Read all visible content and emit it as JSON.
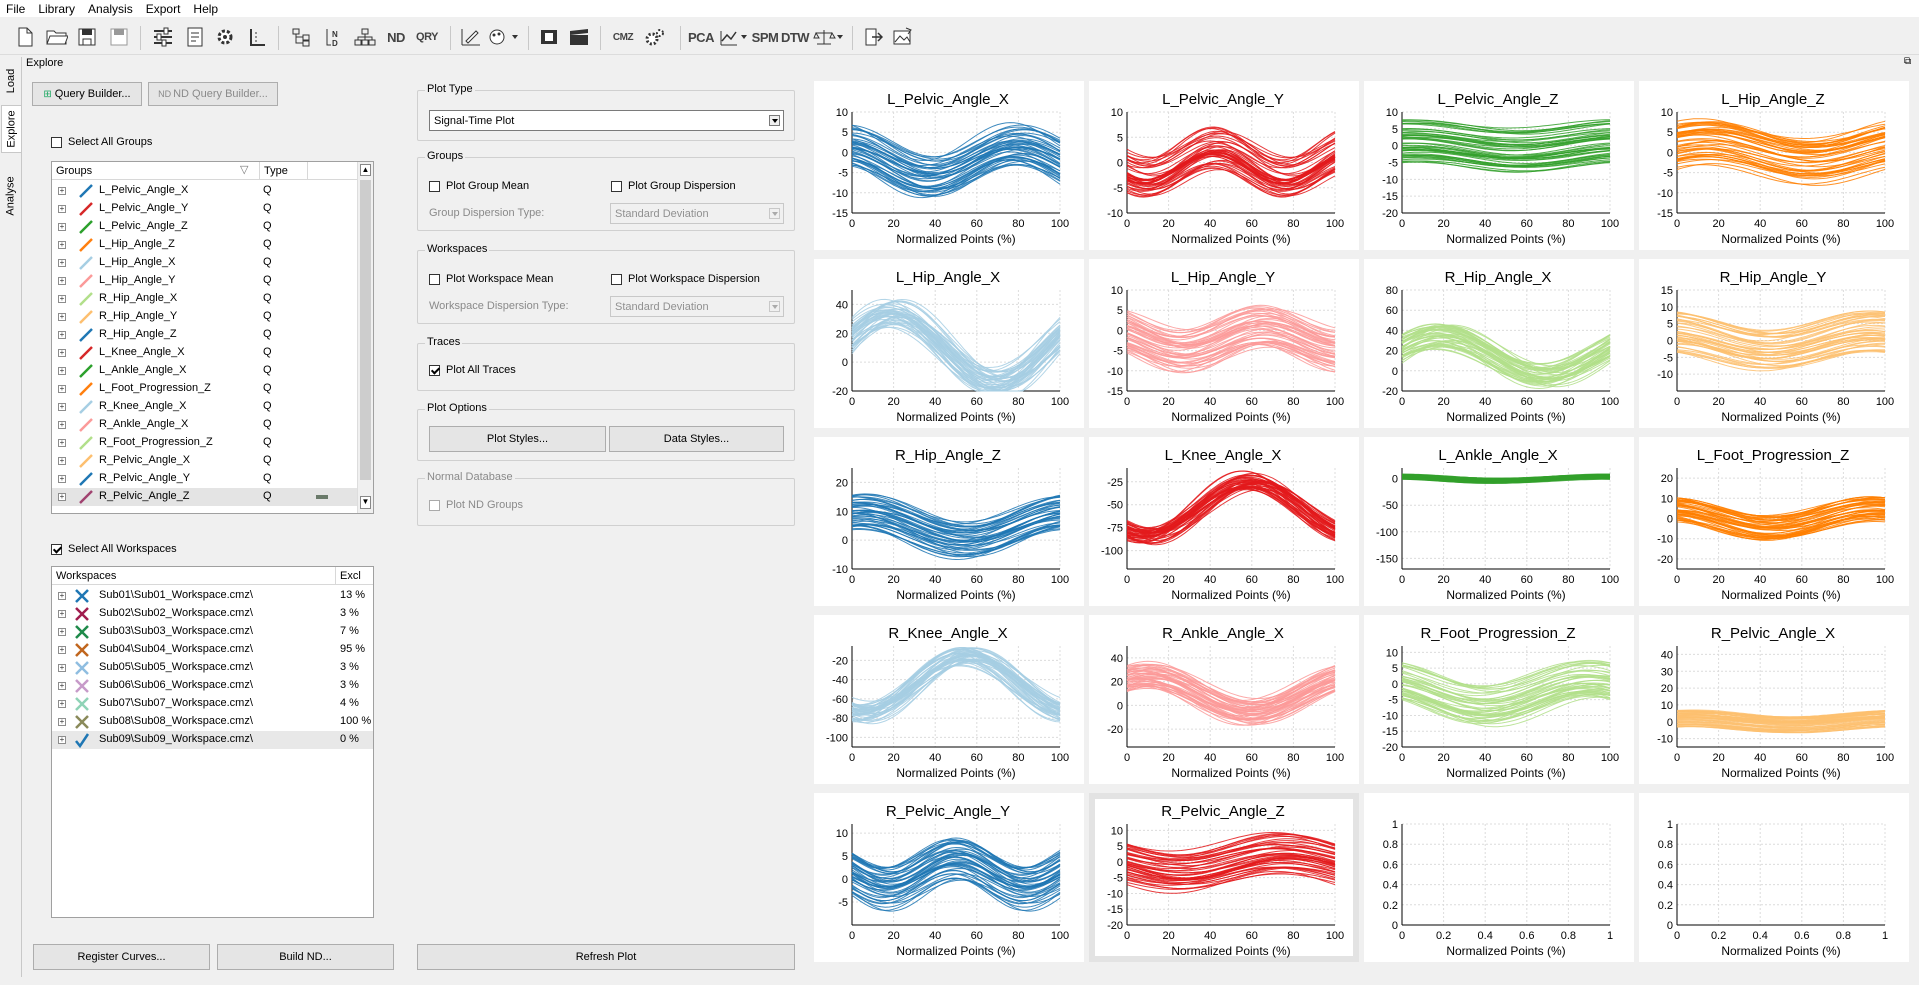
{
  "menu": [
    "File",
    "Library",
    "Analysis",
    "Export",
    "Help"
  ],
  "toolbar_text": {
    "pca": "PCA",
    "spm": "SPM",
    "dtw": "DTW",
    "nd": "ND",
    "qry": "QRY",
    "cmz": "CMZ"
  },
  "vtabs": [
    "Load",
    "Explore",
    "Analyse"
  ],
  "page_title": "Explore",
  "query_builder": "Query Builder...",
  "nd_query_builder": "ND Query Builder...",
  "select_all_groups": "Select All Groups",
  "groups_header": {
    "name": "Groups",
    "type": "Type"
  },
  "groups": [
    {
      "name": "L_Pelvic_Angle_X",
      "type": "Q",
      "color": "#1f77b4"
    },
    {
      "name": "L_Pelvic_Angle_Y",
      "type": "Q",
      "color": "#d62728"
    },
    {
      "name": "L_Pelvic_Angle_Z",
      "type": "Q",
      "color": "#2ca02c"
    },
    {
      "name": "L_Hip_Angle_Z",
      "type": "Q",
      "color": "#ff7f0e"
    },
    {
      "name": "L_Hip_Angle_X",
      "type": "Q",
      "color": "#a6cee3"
    },
    {
      "name": "L_Hip_Angle_Y",
      "type": "Q",
      "color": "#fb9a99"
    },
    {
      "name": "R_Hip_Angle_X",
      "type": "Q",
      "color": "#b2df8a"
    },
    {
      "name": "R_Hip_Angle_Y",
      "type": "Q",
      "color": "#fdbf6f"
    },
    {
      "name": "R_Hip_Angle_Z",
      "type": "Q",
      "color": "#1f77b4"
    },
    {
      "name": "L_Knee_Angle_X",
      "type": "Q",
      "color": "#d62728"
    },
    {
      "name": "L_Ankle_Angle_X",
      "type": "Q",
      "color": "#2ca02c"
    },
    {
      "name": "L_Foot_Progression_Z",
      "type": "Q",
      "color": "#ff7f0e"
    },
    {
      "name": "R_Knee_Angle_X",
      "type": "Q",
      "color": "#a6cee3"
    },
    {
      "name": "R_Ankle_Angle_X",
      "type": "Q",
      "color": "#fb9a99"
    },
    {
      "name": "R_Foot_Progression_Z",
      "type": "Q",
      "color": "#b2df8a"
    },
    {
      "name": "R_Pelvic_Angle_X",
      "type": "Q",
      "color": "#fdbf6f"
    },
    {
      "name": "R_Pelvic_Angle_Y",
      "type": "Q",
      "color": "#1f77b4"
    },
    {
      "name": "R_Pelvic_Angle_Z",
      "type": "Q",
      "color": "#a0426f"
    }
  ],
  "select_all_workspaces": "Select All Workspaces",
  "workspaces_header": {
    "name": "Workspaces",
    "excl": "Excl"
  },
  "workspaces": [
    {
      "name": "Sub01\\Sub01_Workspace.cmz\\",
      "excl": "13 %",
      "color": "#1f77b4",
      "mark": "x"
    },
    {
      "name": "Sub02\\Sub02_Workspace.cmz\\",
      "excl": "3 %",
      "color": "#a01d4e",
      "mark": "x"
    },
    {
      "name": "Sub03\\Sub03_Workspace.cmz\\",
      "excl": "7 %",
      "color": "#1f8a4a",
      "mark": "x"
    },
    {
      "name": "Sub04\\Sub04_Workspace.cmz\\",
      "excl": "95 %",
      "color": "#c0661e",
      "mark": "x"
    },
    {
      "name": "Sub05\\Sub05_Workspace.cmz\\",
      "excl": "3 %",
      "color": "#8fbde0",
      "mark": "x"
    },
    {
      "name": "Sub06\\Sub06_Workspace.cmz\\",
      "excl": "3 %",
      "color": "#c79ac9",
      "mark": "x"
    },
    {
      "name": "Sub07\\Sub07_Workspace.cmz\\",
      "excl": "4 %",
      "color": "#8fd3b6",
      "mark": "x"
    },
    {
      "name": "Sub08\\Sub08_Workspace.cmz\\",
      "excl": "100 %",
      "color": "#8a8a5a",
      "mark": "x"
    },
    {
      "name": "Sub09\\Sub09_Workspace.cmz\\",
      "excl": "0 %",
      "color": "#1f77b4",
      "mark": "check"
    }
  ],
  "register_curves": "Register Curves...",
  "build_nd": "Build ND...",
  "refresh_plot": "Refresh Plot",
  "plot_type": {
    "label": "Plot Type",
    "value": "Signal-Time Plot"
  },
  "groups_section": {
    "label": "Groups",
    "mean": "Plot Group Mean",
    "dispersion": "Plot Group Dispersion",
    "disp_type_label": "Group Dispersion Type:",
    "disp_type_value": "Standard Deviation"
  },
  "workspaces_section": {
    "label": "Workspaces",
    "mean": "Plot Workspace Mean",
    "dispersion": "Plot Workspace Dispersion",
    "disp_type_label": "Workspace Dispersion Type:",
    "disp_type_value": "Standard Deviation"
  },
  "traces_section": {
    "label": "Traces",
    "all": "Plot All Traces"
  },
  "plot_options": {
    "label": "Plot Options",
    "styles": "Plot Styles...",
    "data_styles": "Data Styles..."
  },
  "normal_db": {
    "label": "Normal Database",
    "nd_groups": "Plot ND Groups"
  },
  "chart_data": [
    {
      "type": "line",
      "title": "L_Pelvic_Angle_X",
      "xlabel": "Normalized Points (%)",
      "xlim": [
        0,
        100
      ],
      "ylim": [
        -15,
        10
      ],
      "yticks": [
        -15,
        -10,
        -5,
        0,
        5,
        10
      ],
      "color": "#1f77b4",
      "band": {
        "amp": 4,
        "period": 1.2,
        "phase": 0.3,
        "width": 10,
        "offset": -2
      }
    },
    {
      "type": "line",
      "title": "L_Pelvic_Angle_Y",
      "xlabel": "Normalized Points (%)",
      "xlim": [
        0,
        100
      ],
      "ylim": [
        -10,
        10
      ],
      "yticks": [
        -10,
        -5,
        0,
        5,
        10
      ],
      "color": "#e31a1c",
      "band": {
        "amp": 3,
        "period": 1.5,
        "phase": 0.6,
        "width": 8,
        "offset": 0
      }
    },
    {
      "type": "line",
      "title": "L_Pelvic_Angle_Z",
      "xlabel": "Normalized Points (%)",
      "xlim": [
        0,
        100
      ],
      "ylim": [
        -20,
        10
      ],
      "yticks": [
        -20,
        -15,
        -10,
        -5,
        0,
        5,
        10
      ],
      "color": "#33a02c",
      "band": {
        "amp": 1.5,
        "period": 1,
        "phase": 0.2,
        "width": 13,
        "offset": 0
      }
    },
    {
      "type": "line",
      "title": "L_Hip_Angle_Z",
      "xlabel": "Normalized Points (%)",
      "xlim": [
        0,
        100
      ],
      "ylim": [
        -15,
        10
      ],
      "yticks": [
        -15,
        -10,
        -5,
        0,
        5,
        10
      ],
      "color": "#ff7f00",
      "band": {
        "amp": 2.5,
        "period": 1,
        "phase": 0.1,
        "width": 11,
        "offset": 0
      }
    },
    {
      "type": "line",
      "title": "L_Hip_Angle_X",
      "xlabel": "Normalized Points (%)",
      "xlim": [
        0,
        100
      ],
      "ylim": [
        -20,
        50
      ],
      "yticks": [
        -20,
        0,
        20,
        40
      ],
      "color": "#a6cee3",
      "band": {
        "amp": 25,
        "period": 1,
        "phase": 0.05,
        "width": 15,
        "offset": 10
      }
    },
    {
      "type": "line",
      "title": "L_Hip_Angle_Y",
      "xlabel": "Normalized Points (%)",
      "xlim": [
        0,
        100
      ],
      "ylim": [
        -15,
        10
      ],
      "yticks": [
        -15,
        -10,
        -5,
        0,
        5,
        10
      ],
      "color": "#fb9a99",
      "band": {
        "amp": 3,
        "period": 1.3,
        "phase": 0.4,
        "width": 10,
        "offset": -2
      }
    },
    {
      "type": "line",
      "title": "R_Hip_Angle_X",
      "xlabel": "Normalized Points (%)",
      "xlim": [
        0,
        100
      ],
      "ylim": [
        -20,
        80
      ],
      "yticks": [
        -20,
        0,
        20,
        40,
        60,
        80
      ],
      "color": "#b2df8a",
      "band": {
        "amp": 20,
        "period": 1,
        "phase": 0.05,
        "width": 20,
        "offset": 15
      }
    },
    {
      "type": "line",
      "title": "R_Hip_Angle_Y",
      "xlabel": "Normalized Points (%)",
      "xlim": [
        0,
        100
      ],
      "ylim": [
        -15,
        15
      ],
      "yticks": [
        -10,
        -5,
        0,
        5,
        10,
        15
      ],
      "color": "#fdbf6f",
      "band": {
        "amp": 3,
        "period": 1,
        "phase": 0.3,
        "width": 12,
        "offset": 0
      }
    },
    {
      "type": "line",
      "title": "R_Hip_Angle_Z",
      "xlabel": "Normalized Points (%)",
      "xlim": [
        0,
        100
      ],
      "ylim": [
        -10,
        25
      ],
      "yticks": [
        -10,
        0,
        10,
        20
      ],
      "color": "#1f77b4",
      "band": {
        "amp": 5,
        "period": 1,
        "phase": 0.2,
        "width": 12,
        "offset": 5
      }
    },
    {
      "type": "line",
      "title": "L_Knee_Angle_X",
      "xlabel": "Normalized Points (%)",
      "xlim": [
        0,
        100
      ],
      "ylim": [
        -120,
        -10
      ],
      "yticks": [
        -100,
        -75,
        -50,
        -25
      ],
      "color": "#e31a1c",
      "band": {
        "amp": 30,
        "period": 1,
        "phase": 0.65,
        "width": 15,
        "offset": -55
      }
    },
    {
      "type": "line",
      "title": "L_Ankle_Angle_X",
      "xlabel": "Normalized Points (%)",
      "xlim": [
        0,
        100
      ],
      "ylim": [
        -170,
        20
      ],
      "yticks": [
        -150,
        -100,
        -50,
        0
      ],
      "color": "#33a02c",
      "band": {
        "amp": 4,
        "period": 1,
        "phase": 0.3,
        "width": 10,
        "offset": 0
      }
    },
    {
      "type": "line",
      "title": "L_Foot_Progression_Z",
      "xlabel": "Normalized Points (%)",
      "xlim": [
        0,
        100
      ],
      "ylim": [
        -25,
        25
      ],
      "yticks": [
        -20,
        -10,
        0,
        10,
        20
      ],
      "color": "#ff7f00",
      "band": {
        "amp": 5,
        "period": 1,
        "phase": 0.3,
        "width": 12,
        "offset": 0
      }
    },
    {
      "type": "line",
      "title": "R_Knee_Angle_X",
      "xlabel": "Normalized Points (%)",
      "xlim": [
        0,
        100
      ],
      "ylim": [
        -110,
        -5
      ],
      "yticks": [
        -100,
        -80,
        -60,
        -40,
        -20
      ],
      "color": "#a6cee3",
      "band": {
        "amp": 30,
        "period": 1,
        "phase": 0.7,
        "width": 15,
        "offset": -45
      }
    },
    {
      "type": "line",
      "title": "R_Ankle_Angle_X",
      "xlabel": "Normalized Points (%)",
      "xlim": [
        0,
        100
      ],
      "ylim": [
        -35,
        50
      ],
      "yticks": [
        -20,
        0,
        20,
        40
      ],
      "color": "#fb9a99",
      "band": {
        "amp": 15,
        "period": 1,
        "phase": 0.15,
        "width": 20,
        "offset": 10
      }
    },
    {
      "type": "line",
      "title": "R_Foot_Progression_Z",
      "xlabel": "Normalized Points (%)",
      "xlim": [
        0,
        100
      ],
      "ylim": [
        -20,
        12
      ],
      "yticks": [
        -20,
        -15,
        -10,
        -5,
        0,
        5,
        10
      ],
      "color": "#b2df8a",
      "band": {
        "amp": 4,
        "period": 1,
        "phase": 0.35,
        "width": 13,
        "offset": -3
      }
    },
    {
      "type": "line",
      "title": "R_Pelvic_Angle_X",
      "xlabel": "Normalized Points (%)",
      "xlim": [
        0,
        100
      ],
      "ylim": [
        -15,
        45
      ],
      "yticks": [
        -10,
        0,
        10,
        20,
        30,
        40
      ],
      "color": "#fdbf6f",
      "band": {
        "amp": 2,
        "period": 1,
        "phase": 0.2,
        "width": 10,
        "offset": 0
      }
    },
    {
      "type": "line",
      "title": "R_Pelvic_Angle_Y",
      "xlabel": "Normalized Points (%)",
      "xlim": [
        0,
        100
      ],
      "ylim": [
        -10,
        12
      ],
      "yticks": [
        -5,
        0,
        5,
        10
      ],
      "color": "#1f77b4",
      "band": {
        "amp": 3,
        "period": 1.5,
        "phase": 0.5,
        "width": 9,
        "offset": 1
      }
    },
    {
      "type": "line",
      "title": "R_Pelvic_Angle_Z",
      "xlabel": "Normalized Points (%)",
      "xlim": [
        0,
        100
      ],
      "ylim": [
        -20,
        12
      ],
      "yticks": [
        -20,
        -15,
        -10,
        -5,
        0,
        5,
        10
      ],
      "color": "#e31a1c",
      "band": {
        "amp": 3,
        "period": 1,
        "phase": 0.5,
        "width": 13,
        "offset": 0
      }
    },
    {
      "type": "line",
      "title": "",
      "xlabel": "Normalized Points (%)",
      "xlim": [
        0,
        1
      ],
      "ylim": [
        0,
        1
      ],
      "yticks": [
        0,
        0.2,
        0.4,
        0.6,
        0.8,
        1
      ],
      "xticks": [
        0,
        0.2,
        0.4,
        0.6,
        0.8,
        1
      ],
      "empty": true
    },
    {
      "type": "line",
      "title": "",
      "xlabel": "Normalized Points (%)",
      "xlim": [
        0,
        1
      ],
      "ylim": [
        0,
        1
      ],
      "yticks": [
        0,
        0.2,
        0.4,
        0.6,
        0.8,
        1
      ],
      "xticks": [
        0,
        0.2,
        0.4,
        0.6,
        0.8,
        1
      ],
      "empty": true
    }
  ]
}
